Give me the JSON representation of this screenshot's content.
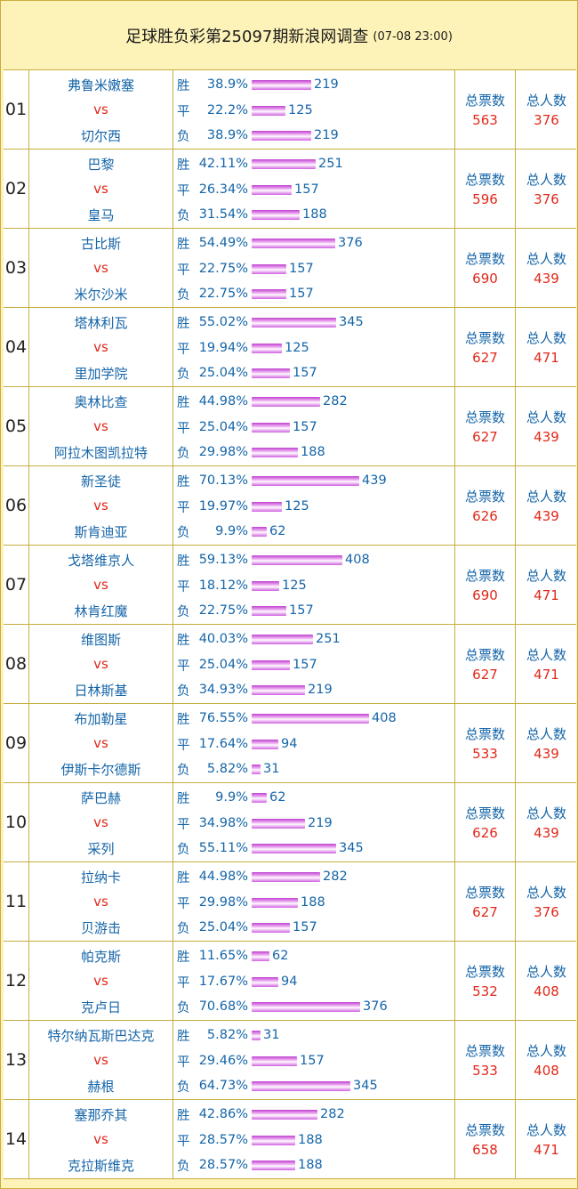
{
  "header": {
    "title": "足球胜负彩第25097期新浪网调查",
    "timestamp": "(07-08 23:00)"
  },
  "labels": {
    "total_votes": "总票数",
    "total_people": "总人数"
  },
  "matches": [
    {
      "no": "01",
      "home": "弗鲁米嫩塞",
      "vs": "vs",
      "away": "切尔西",
      "odds": [
        {
          "res": "胜",
          "pct": "38.9%",
          "count": "219"
        },
        {
          "res": "平",
          "pct": "22.2%",
          "count": "125"
        },
        {
          "res": "负",
          "pct": "38.9%",
          "count": "219"
        }
      ],
      "votes": "563",
      "people": "376"
    },
    {
      "no": "02",
      "home": "巴黎",
      "vs": "vs",
      "away": "皇马",
      "odds": [
        {
          "res": "胜",
          "pct": "42.11%",
          "count": "251"
        },
        {
          "res": "平",
          "pct": "26.34%",
          "count": "157"
        },
        {
          "res": "负",
          "pct": "31.54%",
          "count": "188"
        }
      ],
      "votes": "596",
      "people": "376"
    },
    {
      "no": "03",
      "home": "古比斯",
      "vs": "vs",
      "away": "米尔沙米",
      "odds": [
        {
          "res": "胜",
          "pct": "54.49%",
          "count": "376"
        },
        {
          "res": "平",
          "pct": "22.75%",
          "count": "157"
        },
        {
          "res": "负",
          "pct": "22.75%",
          "count": "157"
        }
      ],
      "votes": "690",
      "people": "439"
    },
    {
      "no": "04",
      "home": "塔林利瓦",
      "vs": "vs",
      "away": "里加学院",
      "odds": [
        {
          "res": "胜",
          "pct": "55.02%",
          "count": "345"
        },
        {
          "res": "平",
          "pct": "19.94%",
          "count": "125"
        },
        {
          "res": "负",
          "pct": "25.04%",
          "count": "157"
        }
      ],
      "votes": "627",
      "people": "471"
    },
    {
      "no": "05",
      "home": "奥林比查",
      "vs": "vs",
      "away": "阿拉木图凯拉特",
      "odds": [
        {
          "res": "胜",
          "pct": "44.98%",
          "count": "282"
        },
        {
          "res": "平",
          "pct": "25.04%",
          "count": "157"
        },
        {
          "res": "负",
          "pct": "29.98%",
          "count": "188"
        }
      ],
      "votes": "627",
      "people": "439"
    },
    {
      "no": "06",
      "home": "新圣徒",
      "vs": "vs",
      "away": "斯肯迪亚",
      "odds": [
        {
          "res": "胜",
          "pct": "70.13%",
          "count": "439"
        },
        {
          "res": "平",
          "pct": "19.97%",
          "count": "125"
        },
        {
          "res": "负",
          "pct": "9.9%",
          "count": "62"
        }
      ],
      "votes": "626",
      "people": "439"
    },
    {
      "no": "07",
      "home": "戈塔维京人",
      "vs": "vs",
      "away": "林肯红魔",
      "odds": [
        {
          "res": "胜",
          "pct": "59.13%",
          "count": "408"
        },
        {
          "res": "平",
          "pct": "18.12%",
          "count": "125"
        },
        {
          "res": "负",
          "pct": "22.75%",
          "count": "157"
        }
      ],
      "votes": "690",
      "people": "471"
    },
    {
      "no": "08",
      "home": "维图斯",
      "vs": "vs",
      "away": "日林斯基",
      "odds": [
        {
          "res": "胜",
          "pct": "40.03%",
          "count": "251"
        },
        {
          "res": "平",
          "pct": "25.04%",
          "count": "157"
        },
        {
          "res": "负",
          "pct": "34.93%",
          "count": "219"
        }
      ],
      "votes": "627",
      "people": "471"
    },
    {
      "no": "09",
      "home": "布加勒星",
      "vs": "vs",
      "away": "伊斯卡尔德斯",
      "odds": [
        {
          "res": "胜",
          "pct": "76.55%",
          "count": "408"
        },
        {
          "res": "平",
          "pct": "17.64%",
          "count": "94"
        },
        {
          "res": "负",
          "pct": "5.82%",
          "count": "31"
        }
      ],
      "votes": "533",
      "people": "439"
    },
    {
      "no": "10",
      "home": "萨巴赫",
      "vs": "vs",
      "away": "采列",
      "odds": [
        {
          "res": "胜",
          "pct": "9.9%",
          "count": "62"
        },
        {
          "res": "平",
          "pct": "34.98%",
          "count": "219"
        },
        {
          "res": "负",
          "pct": "55.11%",
          "count": "345"
        }
      ],
      "votes": "626",
      "people": "439"
    },
    {
      "no": "11",
      "home": "拉纳卡",
      "vs": "vs",
      "away": "贝游击",
      "odds": [
        {
          "res": "胜",
          "pct": "44.98%",
          "count": "282"
        },
        {
          "res": "平",
          "pct": "29.98%",
          "count": "188"
        },
        {
          "res": "负",
          "pct": "25.04%",
          "count": "157"
        }
      ],
      "votes": "627",
      "people": "376"
    },
    {
      "no": "12",
      "home": "帕克斯",
      "vs": "vs",
      "away": "克卢日",
      "odds": [
        {
          "res": "胜",
          "pct": "11.65%",
          "count": "62"
        },
        {
          "res": "平",
          "pct": "17.67%",
          "count": "94"
        },
        {
          "res": "负",
          "pct": "70.68%",
          "count": "376"
        }
      ],
      "votes": "532",
      "people": "408"
    },
    {
      "no": "13",
      "home": "特尔纳瓦斯巴达克",
      "vs": "vs",
      "away": "赫根",
      "odds": [
        {
          "res": "胜",
          "pct": "5.82%",
          "count": "31"
        },
        {
          "res": "平",
          "pct": "29.46%",
          "count": "157"
        },
        {
          "res": "负",
          "pct": "64.73%",
          "count": "345"
        }
      ],
      "votes": "533",
      "people": "408"
    },
    {
      "no": "14",
      "home": "塞那乔其",
      "vs": "vs",
      "away": "克拉斯维克",
      "odds": [
        {
          "res": "胜",
          "pct": "42.86%",
          "count": "282"
        },
        {
          "res": "平",
          "pct": "28.57%",
          "count": "188"
        },
        {
          "res": "负",
          "pct": "28.57%",
          "count": "188"
        }
      ],
      "votes": "658",
      "people": "471"
    }
  ]
}
